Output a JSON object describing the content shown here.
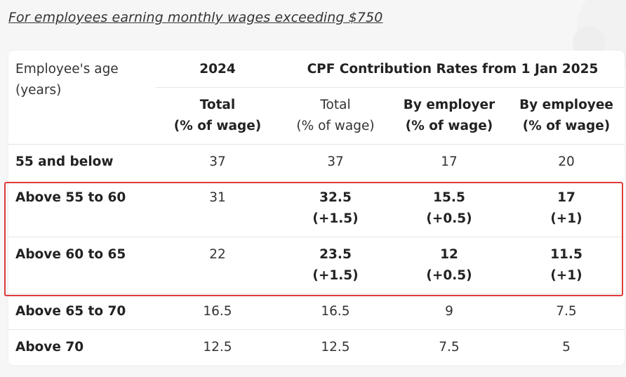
{
  "caption": "For employees earning monthly wages exceeding $750",
  "header": {
    "age_label_line1": "Employee's age",
    "age_label_line2": "(years)",
    "year_2024": "2024",
    "rates_2025": "CPF Contribution Rates from 1 Jan 2025",
    "columns": [
      {
        "line1": "Total",
        "line2": "(% of wage)"
      },
      {
        "line1": "Total",
        "line2": "(% of wage)"
      },
      {
        "line1": "By employer",
        "line2": "(% of wage)"
      },
      {
        "line1": "By employee",
        "line2": "(% of wage)"
      }
    ]
  },
  "rows": [
    {
      "age": "55 and below",
      "total_2024": "37",
      "total_2025": "37",
      "employer": "17",
      "employee": "20"
    },
    {
      "age": "Above 55 to 60",
      "total_2024": "31",
      "total_2025": "32.5",
      "total_2025_change": "(+1.5)",
      "employer": "15.5",
      "employer_change": "(+0.5)",
      "employee": "17",
      "employee_change": "(+1)"
    },
    {
      "age": "Above 60 to 65",
      "total_2024": "22",
      "total_2025": "23.5",
      "total_2025_change": "(+1.5)",
      "employer": "12",
      "employer_change": "(+0.5)",
      "employee": "11.5",
      "employee_change": "(+1)"
    },
    {
      "age": "Above 65 to 70",
      "total_2024": "16.5",
      "total_2025": "16.5",
      "employer": "9",
      "employee": "7.5"
    },
    {
      "age": "Above 70",
      "total_2024": "12.5",
      "total_2025": "12.5",
      "employer": "7.5",
      "employee": "5"
    }
  ],
  "colors": {
    "highlight_border": "#e03a3a",
    "card_background": "#ffffff",
    "page_background": "#f6f6f6"
  }
}
